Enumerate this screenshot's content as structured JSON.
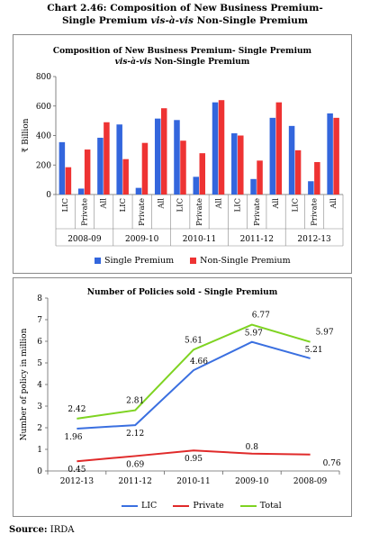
{
  "page": {
    "title_line1": "Chart 2.46: Composition of New Business Premium-",
    "title_line2_plain": "Single Premium ",
    "title_line2_italic": "vis-à-vis",
    "title_line2_rest": " Non-Single Premium",
    "source_label": "Source:",
    "source_value": "IRDA"
  },
  "colors": {
    "single": "#3366dd",
    "nonsingle": "#ee3333",
    "lic": "#3a6fe0",
    "private": "#e02a2a",
    "total": "#7ed321"
  },
  "chart_data": [
    {
      "type": "bar",
      "title_line1": "Composition of New Business Premium- Single Premium",
      "title_line2_italic": "vis-à-vis",
      "title_line2_rest": " Non-Single Premium",
      "ylabel": "₹ Billion",
      "ylim": [
        0,
        800
      ],
      "yticks": [
        0,
        200,
        400,
        600,
        800
      ],
      "groups": [
        "2008-09",
        "2009-10",
        "2010-11",
        "2011-12",
        "2012-13"
      ],
      "categories": [
        "LIC",
        "Private",
        "All"
      ],
      "series": [
        {
          "name": "Single Premium",
          "values": [
            [
              355,
              40,
              385
            ],
            [
              475,
              45,
              515
            ],
            [
              505,
              120,
              625
            ],
            [
              415,
              105,
              520
            ],
            [
              465,
              90,
              550
            ]
          ]
        },
        {
          "name": "Non-Single Premium",
          "values": [
            [
              185,
              305,
              490
            ],
            [
              240,
              350,
              585
            ],
            [
              365,
              280,
              640
            ],
            [
              400,
              230,
              625
            ],
            [
              300,
              220,
              520
            ]
          ]
        }
      ],
      "legend_position": "bottom"
    },
    {
      "type": "line",
      "title": "Number of Policies sold - Single Premium",
      "ylabel": "Number of policy in million",
      "ylim": [
        0,
        8
      ],
      "yticks": [
        0,
        1,
        2,
        3,
        4,
        5,
        6,
        7,
        8
      ],
      "categories": [
        "2012-13",
        "2011-12",
        "2010-11",
        "2009-10",
        "2008-09"
      ],
      "series": [
        {
          "name": "LIC",
          "values": [
            1.96,
            2.12,
            4.66,
            5.97,
            5.21
          ]
        },
        {
          "name": "Private",
          "values": [
            0.45,
            0.69,
            0.95,
            0.8,
            0.76
          ]
        },
        {
          "name": "Total",
          "values": [
            2.42,
            2.81,
            5.61,
            6.77,
            5.97
          ]
        }
      ],
      "legend_position": "bottom"
    }
  ]
}
